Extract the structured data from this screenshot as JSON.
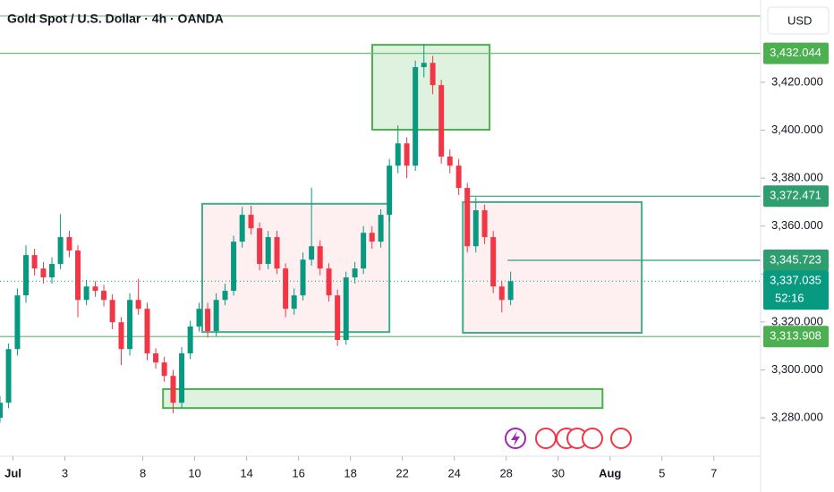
{
  "chart_data": {
    "type": "candlestick",
    "title": "Gold Spot / U.S. Dollar · 4h · OANDA",
    "currency_button": "USD",
    "up_color": "#089981",
    "down_color": "#f23645",
    "xlim": [
      -0.5,
      28.8
    ],
    "ylim": [
      3264,
      3454.3
    ],
    "xticks": [
      {
        "value": 0,
        "label": "Jul"
      },
      {
        "value": 2,
        "label": "3"
      },
      {
        "value": 5,
        "label": "8"
      },
      {
        "value": 7,
        "label": "10"
      },
      {
        "value": 9,
        "label": "14"
      },
      {
        "value": 11,
        "label": "16"
      },
      {
        "value": 13,
        "label": "18"
      },
      {
        "value": 15,
        "label": "22"
      },
      {
        "value": 17,
        "label": "24"
      },
      {
        "value": 19,
        "label": "28"
      },
      {
        "value": 21,
        "label": "30"
      },
      {
        "value": 23,
        "label": "Aug"
      },
      {
        "value": 25,
        "label": "5"
      },
      {
        "value": 27,
        "label": "7"
      }
    ],
    "yticks": [
      {
        "value": 3280,
        "label": "3,280.000"
      },
      {
        "value": 3300,
        "label": "3,300.000"
      },
      {
        "value": 3320,
        "label": "3,320.000"
      },
      {
        "value": 3340,
        "label": "3,340.000"
      },
      {
        "value": 3360,
        "label": "3,360.000"
      },
      {
        "value": 3380,
        "label": "3,380.000"
      },
      {
        "value": 3400,
        "label": "3,400.000"
      },
      {
        "value": 3420,
        "label": "3,420.000"
      }
    ],
    "candles": {
      "x": [
        -0.5,
        -0.17,
        0.17,
        0.5,
        0.83,
        1.17,
        1.5,
        1.83,
        2.17,
        2.5,
        2.83,
        3.17,
        3.5,
        3.83,
        4.17,
        4.5,
        4.83,
        5.17,
        5.5,
        5.83,
        6.17,
        6.5,
        6.83,
        7.17,
        7.5,
        7.83,
        8.17,
        8.5,
        8.83,
        9.17,
        9.5,
        9.83,
        10.17,
        10.5,
        10.83,
        11.17,
        11.5,
        11.83,
        12.17,
        12.5,
        12.83,
        13.17,
        13.5,
        13.83,
        14.17,
        14.5,
        14.83,
        15.17,
        15.5,
        15.83,
        16.17,
        16.5,
        16.83,
        17.17,
        17.5,
        17.83,
        18.17,
        18.5,
        18.83,
        19.17
      ],
      "open": [
        3280.0,
        3286.3,
        3308.7,
        3331.1,
        3347.9,
        3342.3,
        3338.6,
        3344.2,
        3355.4,
        3349.8,
        3329.2,
        3334.8,
        3333.0,
        3329.2,
        3319.9,
        3308.7,
        3329.2,
        3325.5,
        3306.9,
        3303.1,
        3297.5,
        3286.3,
        3306.9,
        3318.1,
        3325.5,
        3316.2,
        3329.2,
        3333.0,
        3353.5,
        3364.7,
        3359.1,
        3344.2,
        3355.4,
        3342.3,
        3325.5,
        3331.1,
        3346.0,
        3351.6,
        3342.3,
        3331.1,
        3312.5,
        3338.6,
        3342.3,
        3357.2,
        3353.5,
        3364.7,
        3385.2,
        3394.5,
        3385.2,
        3426.3,
        3428.1,
        3418.8,
        3389.0,
        3385.2,
        3375.9,
        3351.6,
        3366.6,
        3355.4,
        3334.8,
        3329.2
      ],
      "high": [
        3289.0,
        3311.0,
        3334.0,
        3352.0,
        3350.5,
        3345.0,
        3347.0,
        3365.0,
        3358.0,
        3352.0,
        3337.5,
        3337.0,
        3335.5,
        3331.5,
        3322.0,
        3332.0,
        3338.0,
        3328.0,
        3309.0,
        3305.5,
        3300.0,
        3309.5,
        3320.5,
        3328.0,
        3328.0,
        3332.0,
        3336.0,
        3356.0,
        3368.0,
        3368.5,
        3361.5,
        3358.0,
        3358.0,
        3344.5,
        3334.0,
        3349.0,
        3376.0,
        3354.0,
        3344.5,
        3333.5,
        3341.0,
        3345.0,
        3360.0,
        3360.0,
        3367.0,
        3388.0,
        3402.0,
        3397.0,
        3429.0,
        3436.0,
        3431.0,
        3421.0,
        3392.0,
        3388.0,
        3378.0,
        3372.0,
        3369.0,
        3358.0,
        3337.0,
        3341.0
      ],
      "low": [
        3278.0,
        3284.0,
        3306.0,
        3328.0,
        3339.5,
        3336.0,
        3336.0,
        3342.0,
        3347.0,
        3322.0,
        3327.0,
        3330.5,
        3326.5,
        3317.0,
        3302.0,
        3306.0,
        3323.0,
        3304.0,
        3300.5,
        3295.0,
        3282.0,
        3284.0,
        3304.5,
        3316.0,
        3313.5,
        3314.0,
        3327.0,
        3331.0,
        3351.0,
        3356.5,
        3341.5,
        3342.0,
        3340.0,
        3322.0,
        3323.0,
        3329.0,
        3343.5,
        3339.5,
        3328.5,
        3310.0,
        3310.5,
        3336.0,
        3340.0,
        3350.5,
        3351.0,
        3362.0,
        3382.0,
        3380.0,
        3383.0,
        3422.0,
        3415.0,
        3386.0,
        3382.0,
        3373.0,
        3349.0,
        3349.0,
        3352.5,
        3332.0,
        3324.0,
        3327.0
      ],
      "close": [
        3286.3,
        3308.7,
        3331.1,
        3347.9,
        3342.3,
        3338.6,
        3344.2,
        3355.4,
        3349.8,
        3329.2,
        3334.8,
        3333.0,
        3329.2,
        3319.9,
        3308.7,
        3329.2,
        3325.5,
        3306.9,
        3303.1,
        3297.5,
        3286.3,
        3306.9,
        3318.1,
        3325.5,
        3316.2,
        3329.2,
        3333.0,
        3353.5,
        3364.7,
        3359.1,
        3344.2,
        3355.4,
        3342.3,
        3325.5,
        3331.1,
        3346.0,
        3351.6,
        3342.3,
        3331.1,
        3312.5,
        3338.6,
        3342.3,
        3357.2,
        3353.5,
        3364.7,
        3385.2,
        3394.5,
        3385.2,
        3426.3,
        3428.1,
        3418.8,
        3389.0,
        3385.2,
        3375.9,
        3351.6,
        3366.6,
        3355.4,
        3334.8,
        3329.2,
        3337.0
      ]
    },
    "boxes": [
      {
        "x": [
          13.84,
          18.36
        ],
        "y": [
          3400.2,
          3435.6
        ],
        "color": "#4caf50",
        "fill": "rgba(76,175,80,0.18)"
      },
      {
        "x": [
          7.29,
          14.5
        ],
        "y": [
          3315.8,
          3369.3
        ],
        "color": "#3fae8a",
        "fill": "rgba(242,54,69,0.08)"
      },
      {
        "x": [
          17.33,
          24.22
        ],
        "y": [
          3315.5,
          3370.0
        ],
        "color": "#3fae8a",
        "fill": "rgba(242,54,69,0.08)"
      },
      {
        "x": [
          5.78,
          22.71
        ],
        "y": [
          3284.1,
          3292.0
        ],
        "color": "#4caf50",
        "fill": "rgba(76,175,80,0.18)"
      }
    ],
    "hlines": [
      {
        "price": 3447.6,
        "color": "#6fbf73"
      },
      {
        "price": 3432.044,
        "color": "#6fbf73"
      },
      {
        "price": 3313.908,
        "color": "#6fbf73"
      },
      {
        "price": 3372.471,
        "from": 17.43,
        "color": "#2e9e7a"
      },
      {
        "price": 3345.723,
        "from": 19.05,
        "color": "#2e9e7a"
      }
    ],
    "price_labels": [
      {
        "value": 3432.044,
        "label": "3,432.044",
        "color": "#4caf50"
      },
      {
        "value": 3372.471,
        "label": "3,372.471",
        "color": "#2e9e6e"
      },
      {
        "value": 3345.723,
        "label": "3,345.723",
        "color": "#2e9e6e"
      },
      {
        "value": 3313.908,
        "label": "3,313.908",
        "color": "#4caf50"
      }
    ],
    "current_price": {
      "value": 3337.035,
      "label": "3,337.035",
      "countdown": "52:16",
      "color": "#089981"
    }
  }
}
